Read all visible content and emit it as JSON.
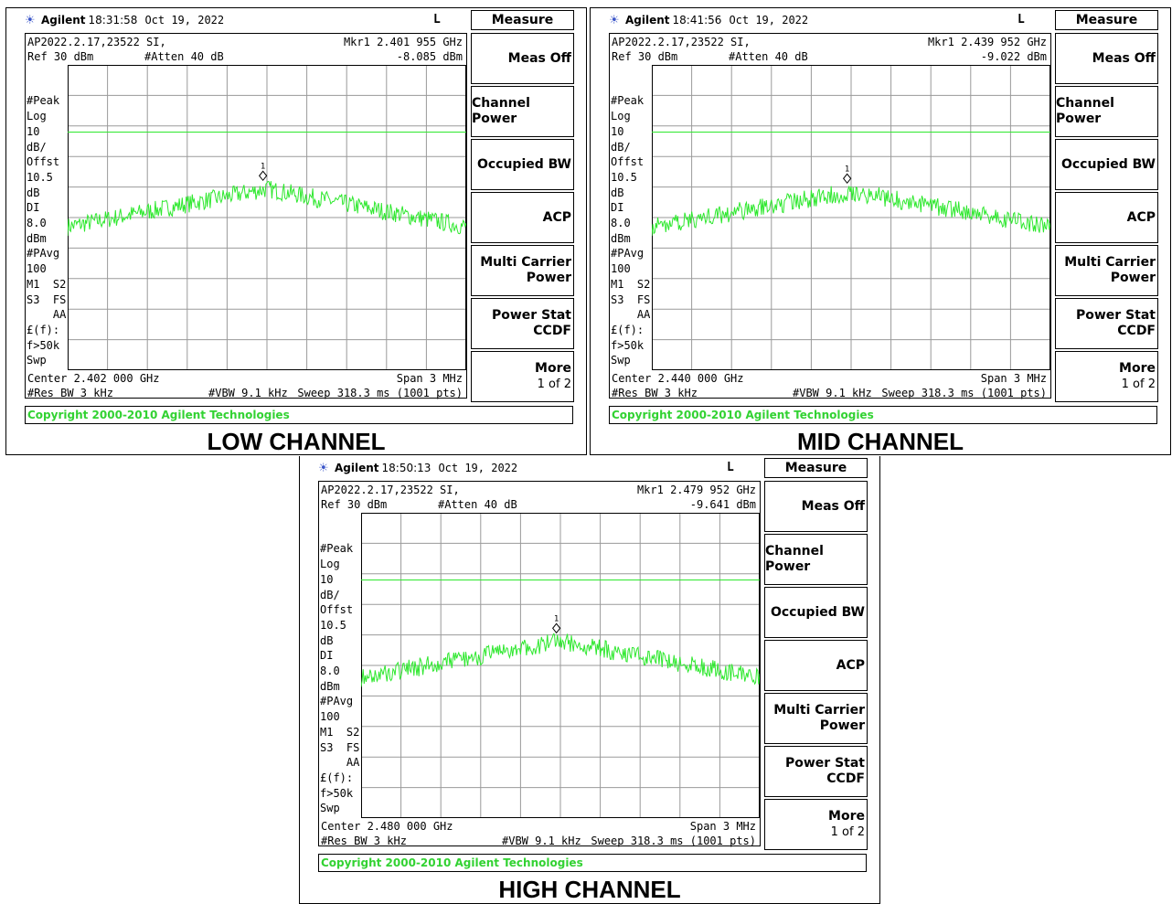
{
  "menu": {
    "title": "Measure",
    "keys": [
      {
        "lines": [
          "Meas Off"
        ],
        "sub": ""
      },
      {
        "lines": [
          "Channel Power"
        ],
        "sub": ""
      },
      {
        "lines": [
          "Occupied BW"
        ],
        "sub": ""
      },
      {
        "lines": [
          "ACP"
        ],
        "sub": ""
      },
      {
        "lines": [
          "Multi Carrier",
          "Power"
        ],
        "sub": ""
      },
      {
        "lines": [
          "Power Stat",
          "CCDF"
        ],
        "sub": ""
      },
      {
        "lines": [
          "More"
        ],
        "sub": "1 of 2"
      }
    ]
  },
  "colors": {
    "trace": "#2ee82e",
    "threshold": "#2ee82e",
    "grid": "#9a9a9a",
    "copyright": "#32d232"
  },
  "panels": [
    {
      "caption": "LOW CHANNEL",
      "brand": "Agilent",
      "time": "18:31:58",
      "date": "Oct 19, 2022",
      "flag": "L",
      "file": "AP2022.2.17,23522 SI,",
      "marker_freq": "Mkr1  2.401 955 GHz",
      "marker_level": "-8.085 dBm",
      "ref": "Ref 30 dBm",
      "atten": "#Atten 40 dB",
      "sidebar": [
        "#Peak",
        "Log",
        "10",
        "dB/",
        "Offst",
        "10.5",
        "dB",
        "DI",
        "8.0",
        "dBm",
        "#PAvg",
        "100",
        "M1  S2",
        "S3  FS",
        "    AA",
        "£(f):",
        "f>50k",
        "Swp"
      ],
      "center": "Center 2.402 000 GHz",
      "span": "Span 3 MHz",
      "res_bw": "#Res BW 3 kHz",
      "vbw": "#VBW 9.1 kHz",
      "sweep": "Sweep 318.3 ms (1001 pts)",
      "copyright": "Copyright 2000-2010 Agilent Technologies",
      "marker_label": "1",
      "trace_db": [
        -20.5,
        -8.1
      ],
      "marker_pos": 0.49,
      "threshold_db": 8.0
    },
    {
      "caption": "MID CHANNEL",
      "brand": "Agilent",
      "time": "18:41:56",
      "date": "Oct 19, 2022",
      "flag": "L",
      "file": "AP2022.2.17,23522 SI,",
      "marker_freq": "Mkr1  2.439 952 GHz",
      "marker_level": "-9.022 dBm",
      "ref": "Ref 30 dBm",
      "atten": "#Atten 40 dB",
      "sidebar": [
        "#Peak",
        "Log",
        "10",
        "dB/",
        "Offst",
        "10.5",
        "dB",
        "DI",
        "8.0",
        "dBm",
        "#PAvg",
        "100",
        "M1  S2",
        "S3  FS",
        "    AA",
        "£(f):",
        "f>50k",
        "Swp"
      ],
      "center": "Center 2.440 000 GHz",
      "span": "Span 3 MHz",
      "res_bw": "#Res BW 3 kHz",
      "vbw": "#VBW 9.1 kHz",
      "sweep": "Sweep 318.3 ms (1001 pts)",
      "copyright": "Copyright 2000-2010 Agilent Technologies",
      "marker_label": "1",
      "trace_db": [
        -20.5,
        -9.0
      ],
      "marker_pos": 0.49,
      "threshold_db": 8.0
    },
    {
      "caption": "HIGH CHANNEL",
      "brand": "Agilent",
      "time": "18:50:13",
      "date": "Oct 19, 2022",
      "flag": "L",
      "file": "AP2022.2.17,23522 SI,",
      "marker_freq": "Mkr1  2.479 952 GHz",
      "marker_level": "-9.641 dBm",
      "ref": "Ref 30 dBm",
      "atten": "#Atten 40 dB",
      "sidebar": [
        "#Peak",
        "Log",
        "10",
        "dB/",
        "Offst",
        "10.5",
        "dB",
        "DI",
        "8.0",
        "dBm",
        "#PAvg",
        "100",
        "M1  S2",
        "S3  FS",
        "    AA",
        "£(f):",
        "f>50k",
        "Swp"
      ],
      "center": "Center 2.480 000 GHz",
      "span": "Span 3 MHz",
      "res_bw": "#Res BW 3 kHz",
      "vbw": "#VBW 9.1 kHz",
      "sweep": "Sweep 318.3 ms (1001 pts)",
      "copyright": "Copyright 2000-2010 Agilent Technologies",
      "marker_label": "1",
      "trace_db": [
        -21.5,
        -9.6
      ],
      "marker_pos": 0.49,
      "threshold_db": 8.0
    }
  ]
}
